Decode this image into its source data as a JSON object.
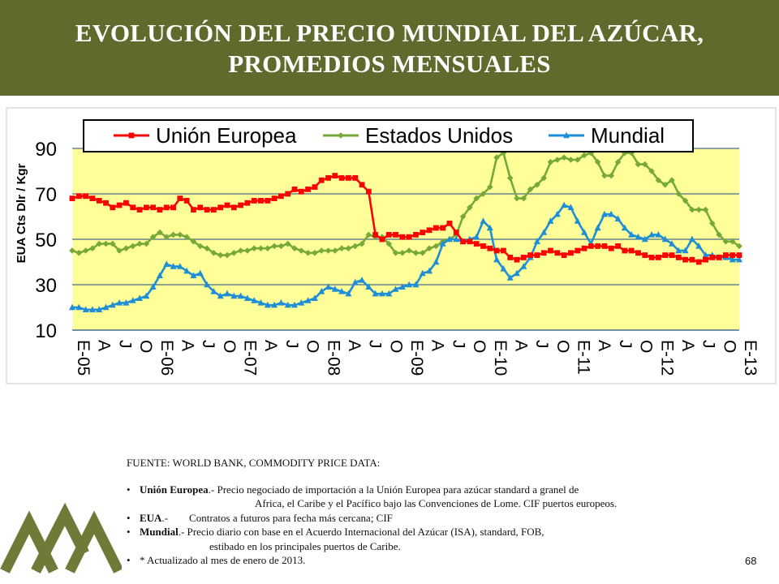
{
  "title": {
    "line1": "EVOLUCIÓN DEL PRECIO MUNDIAL DEL AZÚCAR,",
    "line2": "PROMEDIOS MENSUALES"
  },
  "colors": {
    "title_bg": "#5f6b2d",
    "plot_bg": "#ffff99",
    "ue": "#ff0000",
    "eeuu": "#77a83a",
    "mundial": "#1e8fd6",
    "logo": "#6e7b38"
  },
  "chart_data": {
    "type": "line",
    "ylabel": "EUA Cts Dlr / Kgr",
    "ylim": [
      10,
      90
    ],
    "yticks": [
      10,
      30,
      50,
      70,
      90
    ],
    "grid": "horizontal",
    "legend_position": "top",
    "x_tick_labels": [
      "E-05",
      "A",
      "J",
      "O",
      "E-06",
      "A",
      "J",
      "O",
      "E-07",
      "A",
      "J",
      "O",
      "E-08",
      "A",
      "J",
      "O",
      "E-09",
      "A",
      "J",
      "O",
      "E-10",
      "A",
      "J",
      "O",
      "E-11",
      "A",
      "J",
      "O",
      "E-12",
      "A",
      "J",
      "O",
      "E-13"
    ],
    "series": [
      {
        "name": "Unión Europea",
        "color": "#ff0000",
        "marker": "square",
        "values": [
          68,
          69,
          69,
          68,
          67,
          66,
          64,
          65,
          66,
          64,
          63,
          64,
          64,
          63,
          64,
          64,
          68,
          67,
          63,
          64,
          63,
          63,
          64,
          65,
          64,
          65,
          66,
          67,
          67,
          67,
          68,
          69,
          70,
          72,
          71,
          72,
          73,
          76,
          77,
          78,
          77,
          77,
          77,
          74,
          71,
          52,
          50,
          52,
          52,
          51,
          51,
          52,
          53,
          54,
          55,
          55,
          57,
          53,
          49,
          49,
          48,
          47,
          46,
          45,
          45,
          42,
          41,
          42,
          43,
          43,
          44,
          45,
          44,
          43,
          44,
          45,
          46,
          47,
          47,
          47,
          46,
          47,
          45,
          45,
          44,
          43,
          42,
          42,
          43,
          43,
          42,
          41,
          41,
          40,
          41,
          42,
          42,
          43,
          43,
          43
        ]
      },
      {
        "name": "Estados Unidos",
        "color": "#77a83a",
        "marker": "diamond",
        "values": [
          45,
          44,
          45,
          46,
          48,
          48,
          48,
          45,
          46,
          47,
          48,
          48,
          51,
          53,
          51,
          52,
          52,
          51,
          49,
          47,
          46,
          44,
          43,
          43,
          44,
          45,
          45,
          46,
          46,
          46,
          47,
          47,
          48,
          46,
          45,
          44,
          44,
          45,
          45,
          45,
          46,
          46,
          47,
          48,
          52,
          51,
          51,
          48,
          44,
          44,
          45,
          44,
          44,
          46,
          47,
          49,
          50,
          52,
          60,
          64,
          68,
          70,
          73,
          86,
          88,
          77,
          68,
          68,
          72,
          74,
          77,
          84,
          85,
          86,
          85,
          85,
          87,
          88,
          84,
          78,
          78,
          84,
          88,
          88,
          83,
          83,
          80,
          76,
          74,
          76,
          70,
          67,
          63,
          63,
          63,
          57,
          52,
          49,
          49,
          47
        ]
      },
      {
        "name": "Mundial",
        "color": "#1e8fd6",
        "marker": "triangle",
        "values": [
          20,
          20,
          19,
          19,
          19,
          20,
          21,
          22,
          22,
          23,
          24,
          25,
          29,
          34,
          39,
          38,
          38,
          36,
          34,
          35,
          30,
          27,
          25,
          26,
          25,
          25,
          24,
          23,
          22,
          21,
          21,
          22,
          21,
          21,
          22,
          23,
          24,
          27,
          29,
          28,
          27,
          26,
          31,
          32,
          29,
          26,
          26,
          26,
          28,
          29,
          30,
          30,
          35,
          36,
          40,
          48,
          50,
          50,
          49,
          50,
          51,
          58,
          55,
          41,
          37,
          33,
          35,
          38,
          42,
          49,
          53,
          58,
          61,
          65,
          64,
          58,
          53,
          48,
          55,
          61,
          61,
          59,
          55,
          52,
          51,
          50,
          52,
          52,
          50,
          48,
          45,
          45,
          50,
          47,
          43,
          43,
          42,
          42,
          41,
          41
        ]
      }
    ]
  },
  "notes": {
    "source": "FUENTE: WORLD BANK, COMMODITY PRICE DATA:",
    "ue_key": "Unión Europea",
    "ue_text": ".- Precio negociado de importación a la Unión Europea para azúcar standard a granel de",
    "ue_cont": "Africa, el Caribe y el Pacífico bajo las Convenciones de Lome. CIF puertos europeos.",
    "eua_key": "EUA",
    "eua_text": ".-        Contratos a futuros para fecha más cercana; CIF",
    "mundial_key": "Mundial",
    "mundial_text": ".- Precio diario con base en el Acuerdo Internacional del Azúcar (ISA), standard, FOB,",
    "mundial_cont": "estibado en los principales puertos de Caribe.",
    "updated": "* Actualizado al mes de enero de 2013."
  },
  "page_number": "68"
}
